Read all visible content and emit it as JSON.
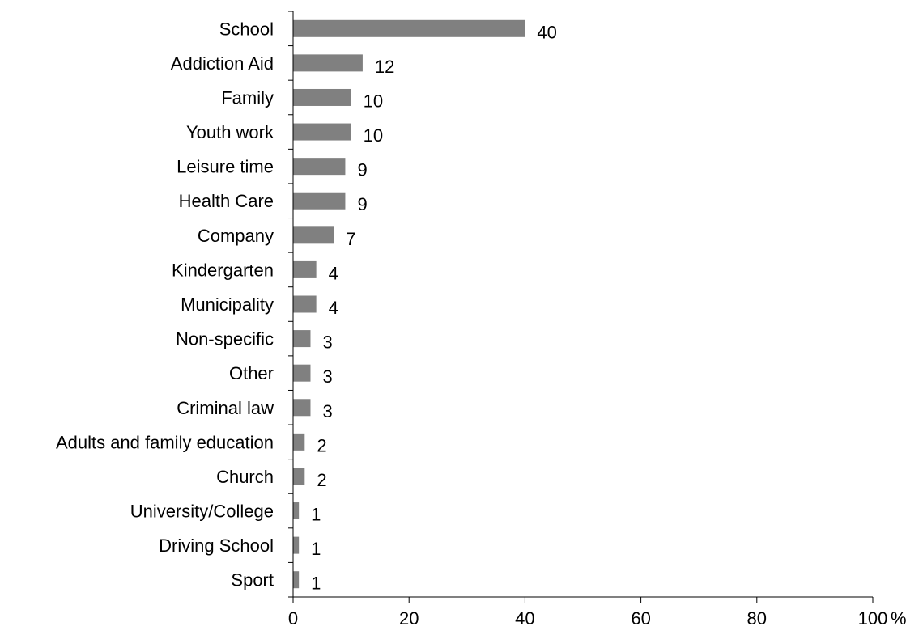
{
  "chart_data": {
    "type": "bar",
    "orientation": "horizontal",
    "categories": [
      "School",
      "Addiction Aid",
      "Family",
      "Youth work",
      "Leisure time",
      "Health Care",
      "Company",
      "Kindergarten",
      "Municipality",
      "Non-specific",
      "Other",
      "Criminal law",
      "Adults and family education",
      "Church",
      "University/College",
      "Driving School",
      "Sport"
    ],
    "values": [
      40,
      12,
      10,
      10,
      9,
      9,
      7,
      4,
      4,
      3,
      3,
      3,
      2,
      2,
      1,
      1,
      1
    ],
    "data_labels": [
      "40",
      "12",
      "10",
      "10",
      "9",
      "9",
      "7",
      "4",
      "4",
      "3",
      "3",
      "3",
      "2",
      "2",
      "1",
      "1",
      "1"
    ],
    "xlim": [
      0,
      100
    ],
    "x_ticks": [
      0,
      20,
      40,
      60,
      80,
      100
    ],
    "x_tick_labels": [
      "0",
      "20",
      "40",
      "60",
      "80",
      "100"
    ],
    "x_unit_label": "%",
    "title": "",
    "xlabel": "",
    "ylabel": "",
    "grid": false,
    "legend": "none",
    "bar_color": "#808080",
    "axis_color": "#000000"
  }
}
